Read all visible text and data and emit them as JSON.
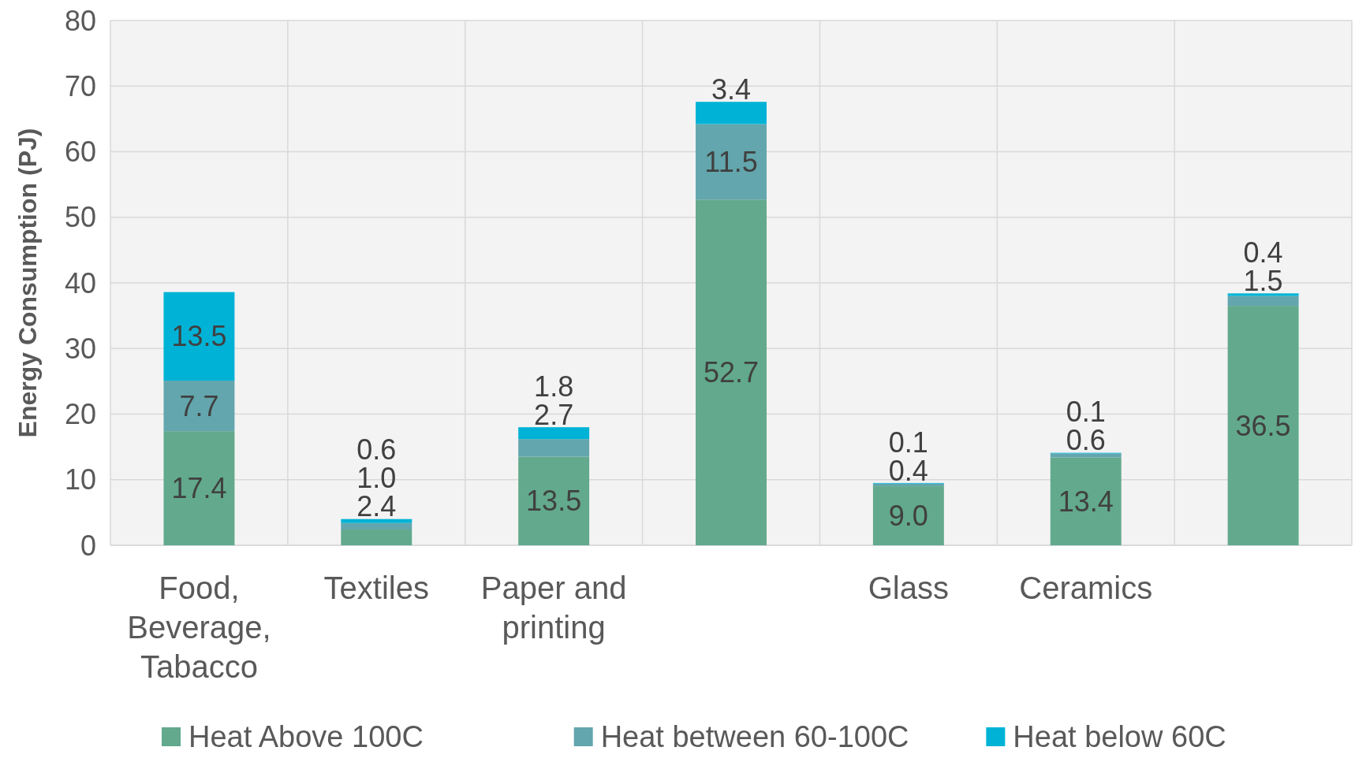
{
  "chart_data": {
    "type": "bar",
    "stacked": true,
    "ylabel": "Energy Consumption (PJ)",
    "categories": [
      "Food, Beverage, Tabacco",
      "Textiles",
      "Paper and printing",
      null,
      "Glass",
      "Ceramics",
      null
    ],
    "series": [
      {
        "name": "Heat Above 100C",
        "color": "#62a98d",
        "values": [
          17.4,
          2.4,
          13.5,
          52.7,
          9.0,
          13.4,
          36.5
        ],
        "value_labels": [
          "17.4",
          "2.4",
          "13.5",
          "52.7",
          "9.0",
          "13.4",
          "36.5"
        ]
      },
      {
        "name": "Heat between 60-100C",
        "color": "#63a6ad",
        "values": [
          7.7,
          1.0,
          2.7,
          11.5,
          0.4,
          0.6,
          1.5
        ],
        "value_labels": [
          "7.7",
          "1.0",
          "2.7",
          "11.5",
          "0.4",
          "0.6",
          "1.5"
        ]
      },
      {
        "name": "Heat below 60C",
        "color": "#00b3d6",
        "values": [
          13.5,
          0.6,
          1.8,
          3.4,
          0.1,
          0.1,
          0.4
        ],
        "value_labels": [
          "13.5",
          "0.6",
          "1.8",
          "3.4",
          "0.1",
          "0.1",
          "0.4"
        ]
      }
    ],
    "ylim": [
      0,
      80
    ],
    "yticks": [
      0,
      10,
      20,
      30,
      40,
      50,
      60,
      70,
      80
    ],
    "grid": true,
    "legend": "bottom"
  }
}
